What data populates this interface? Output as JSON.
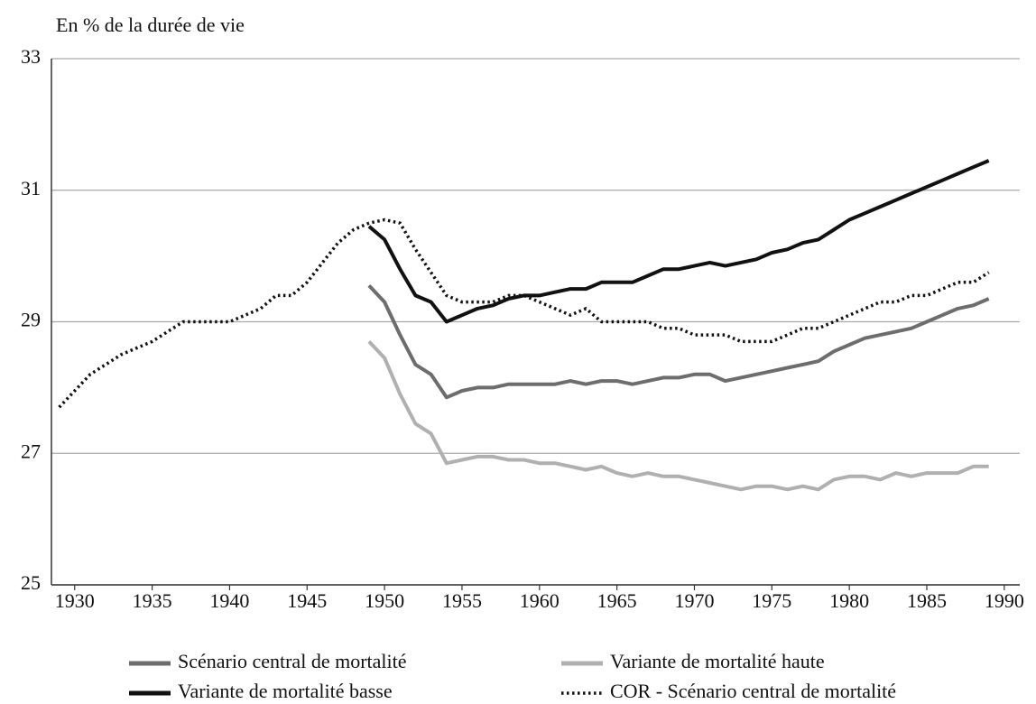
{
  "chart_data": {
    "type": "line",
    "y_label": "En % de la durée de vie",
    "x": [
      1929,
      1930,
      1931,
      1932,
      1933,
      1934,
      1935,
      1936,
      1937,
      1938,
      1939,
      1940,
      1941,
      1942,
      1943,
      1944,
      1945,
      1946,
      1947,
      1948,
      1949,
      1950,
      1951,
      1952,
      1953,
      1954,
      1955,
      1956,
      1957,
      1958,
      1959,
      1960,
      1961,
      1962,
      1963,
      1964,
      1965,
      1966,
      1967,
      1968,
      1969,
      1970,
      1971,
      1972,
      1973,
      1974,
      1975,
      1976,
      1977,
      1978,
      1979,
      1980,
      1981,
      1982,
      1983,
      1984,
      1985,
      1986,
      1987,
      1988,
      1989
    ],
    "series": [
      {
        "name": "Scénario central de mortalité",
        "color": "#6d6d6d",
        "style": "solid",
        "values": [
          null,
          null,
          null,
          null,
          null,
          null,
          null,
          null,
          null,
          null,
          null,
          null,
          null,
          null,
          null,
          null,
          null,
          null,
          null,
          null,
          29.55,
          29.3,
          28.8,
          28.35,
          28.2,
          27.85,
          27.95,
          28.0,
          28.0,
          28.05,
          28.05,
          28.05,
          28.05,
          28.1,
          28.05,
          28.1,
          28.1,
          28.05,
          28.1,
          28.15,
          28.15,
          28.2,
          28.2,
          28.1,
          28.15,
          28.2,
          28.25,
          28.3,
          28.35,
          28.4,
          28.55,
          28.65,
          28.75,
          28.8,
          28.85,
          28.9,
          29.0,
          29.1,
          29.2,
          29.25,
          29.35
        ]
      },
      {
        "name": "Variante de mortalité haute",
        "color": "#b0b0b0",
        "style": "solid",
        "values": [
          null,
          null,
          null,
          null,
          null,
          null,
          null,
          null,
          null,
          null,
          null,
          null,
          null,
          null,
          null,
          null,
          null,
          null,
          null,
          null,
          28.7,
          28.45,
          27.9,
          27.45,
          27.3,
          26.85,
          26.9,
          26.95,
          26.95,
          26.9,
          26.9,
          26.85,
          26.85,
          26.8,
          26.75,
          26.8,
          26.7,
          26.65,
          26.7,
          26.65,
          26.65,
          26.6,
          26.55,
          26.5,
          26.45,
          26.5,
          26.5,
          26.45,
          26.5,
          26.45,
          26.6,
          26.65,
          26.65,
          26.6,
          26.7,
          26.65,
          26.7,
          26.7,
          26.7,
          26.8,
          26.8
        ]
      },
      {
        "name": "Variante de mortalité basse",
        "color": "#111111",
        "style": "solid",
        "values": [
          null,
          null,
          null,
          null,
          null,
          null,
          null,
          null,
          null,
          null,
          null,
          null,
          null,
          null,
          null,
          null,
          null,
          null,
          null,
          null,
          30.45,
          30.25,
          29.8,
          29.4,
          29.3,
          29.0,
          29.1,
          29.2,
          29.25,
          29.35,
          29.4,
          29.4,
          29.45,
          29.5,
          29.5,
          29.6,
          29.6,
          29.6,
          29.7,
          29.8,
          29.8,
          29.85,
          29.9,
          29.85,
          29.9,
          29.95,
          30.05,
          30.1,
          30.2,
          30.25,
          30.4,
          30.55,
          30.65,
          30.75,
          30.85,
          30.95,
          31.05,
          31.15,
          31.25,
          31.35,
          31.45
        ]
      },
      {
        "name": "COR - Scénario central de mortalité",
        "color": "#111111",
        "style": "dotted",
        "values": [
          27.7,
          27.95,
          28.2,
          28.35,
          28.5,
          28.6,
          28.7,
          28.85,
          29.0,
          29.0,
          29.0,
          29.0,
          29.1,
          29.2,
          29.4,
          29.4,
          29.6,
          29.9,
          30.2,
          30.4,
          30.5,
          30.55,
          30.5,
          30.1,
          29.75,
          29.4,
          29.3,
          29.3,
          29.3,
          29.4,
          29.4,
          29.3,
          29.2,
          29.1,
          29.2,
          29.0,
          29.0,
          29.0,
          29.0,
          28.9,
          28.9,
          28.8,
          28.8,
          28.8,
          28.7,
          28.7,
          28.7,
          28.8,
          28.9,
          28.9,
          29.0,
          29.1,
          29.2,
          29.3,
          29.3,
          29.4,
          29.4,
          29.5,
          29.6,
          29.6,
          29.75
        ]
      }
    ],
    "xlim": [
      1928.5,
      1991
    ],
    "xticks": [
      1930,
      1935,
      1940,
      1945,
      1950,
      1955,
      1960,
      1965,
      1970,
      1975,
      1980,
      1985,
      1990
    ],
    "ylim": [
      25,
      33
    ],
    "yticks": [
      25,
      27,
      29,
      31,
      33
    ],
    "grid": true,
    "legend": "bottom"
  }
}
